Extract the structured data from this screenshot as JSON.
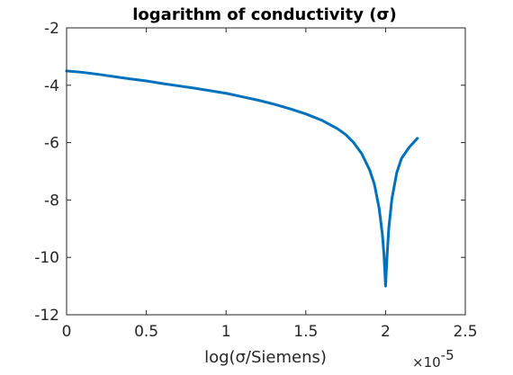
{
  "chart_data": {
    "type": "line",
    "title": "logarithm of conductivity (σ)",
    "xlabel": "log(σ/Siemens)",
    "ylabel": "",
    "x_exponent_label": "×10",
    "x_exponent_power": "-5",
    "x_multiplier": 1e-05,
    "xlim": [
      0,
      2.5
    ],
    "ylim": [
      -12,
      -2
    ],
    "xticks": [
      0,
      0.5,
      1,
      1.5,
      2,
      2.5
    ],
    "xtick_labels": [
      "0",
      "0.5",
      "1",
      "1.5",
      "2",
      "2.5"
    ],
    "yticks": [
      -12,
      -10,
      -8,
      -6,
      -4,
      -2
    ],
    "ytick_labels": [
      "-12",
      "-10",
      "-8",
      "-6",
      "-4",
      "-2"
    ],
    "grid": false,
    "line_color": "#0072BD",
    "series": [
      {
        "x": [
          0,
          0.1,
          0.2,
          0.3,
          0.4,
          0.5,
          0.6,
          0.7,
          0.8,
          0.9,
          1.0,
          1.1,
          1.2,
          1.3,
          1.4,
          1.5,
          1.6,
          1.7,
          1.75,
          1.8,
          1.85,
          1.9,
          1.93,
          1.96,
          1.98,
          1.99,
          2.0,
          2.01,
          2.02,
          2.04,
          2.07,
          2.1,
          2.15,
          2.2
        ],
        "y": [
          -3.5,
          -3.55,
          -3.62,
          -3.7,
          -3.78,
          -3.85,
          -3.94,
          -4.02,
          -4.1,
          -4.19,
          -4.28,
          -4.4,
          -4.52,
          -4.66,
          -4.82,
          -5.0,
          -5.22,
          -5.52,
          -5.72,
          -6.0,
          -6.38,
          -6.95,
          -7.45,
          -8.3,
          -9.2,
          -9.9,
          -11.0,
          -9.9,
          -9.0,
          -7.95,
          -7.05,
          -6.55,
          -6.15,
          -5.85
        ]
      }
    ]
  }
}
